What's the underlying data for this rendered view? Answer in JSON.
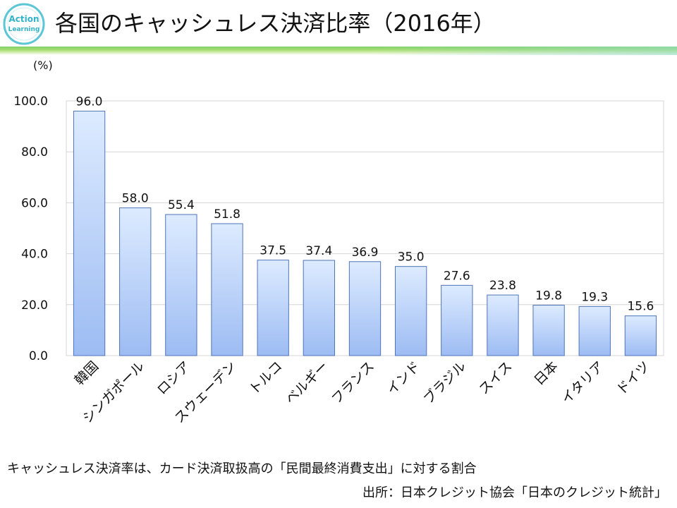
{
  "header": {
    "logo_text_1": "Action",
    "logo_text_2": "Learning",
    "title": "各国のキャッシュレス決済比率（2016年）"
  },
  "chart_data": {
    "type": "bar",
    "title": "各国のキャッシュレス決済比率（2016年）",
    "unit_label": "(%)",
    "categories": [
      "韓国",
      "シンガポール",
      "ロシア",
      "スウェーデン",
      "トルコ",
      "ベルギー",
      "フランス",
      "インド",
      "ブラジル",
      "スイス",
      "日本",
      "イタリア",
      "ドイツ"
    ],
    "values": [
      96.0,
      58.0,
      55.4,
      51.8,
      37.5,
      37.4,
      36.9,
      35.0,
      27.6,
      23.8,
      19.8,
      19.3,
      15.6
    ],
    "data_labels": [
      "96.0",
      "58.0",
      "55.4",
      "51.8",
      "37.5",
      "37.4",
      "36.9",
      "35.0",
      "27.6",
      "23.8",
      "19.8",
      "19.3",
      "15.6"
    ],
    "y_ticks": [
      "0.0",
      "20.0",
      "40.0",
      "60.0",
      "80.0",
      "100.0"
    ],
    "y_tick_values": [
      0,
      20,
      40,
      60,
      80,
      100
    ],
    "ylim": [
      0,
      100
    ],
    "grid": true,
    "colors": {
      "bar_top": "#ddebff",
      "bar_bottom": "#9dbcf3",
      "bar_stroke": "#4f74b8",
      "grid": "#d4d4d4"
    }
  },
  "footer": {
    "note": "キャッシュレス決済率は、カード決済取扱高の「民間最終消費支出」に対する割合",
    "source": "出所：日本クレジット協会「日本のクレジット統計」"
  }
}
